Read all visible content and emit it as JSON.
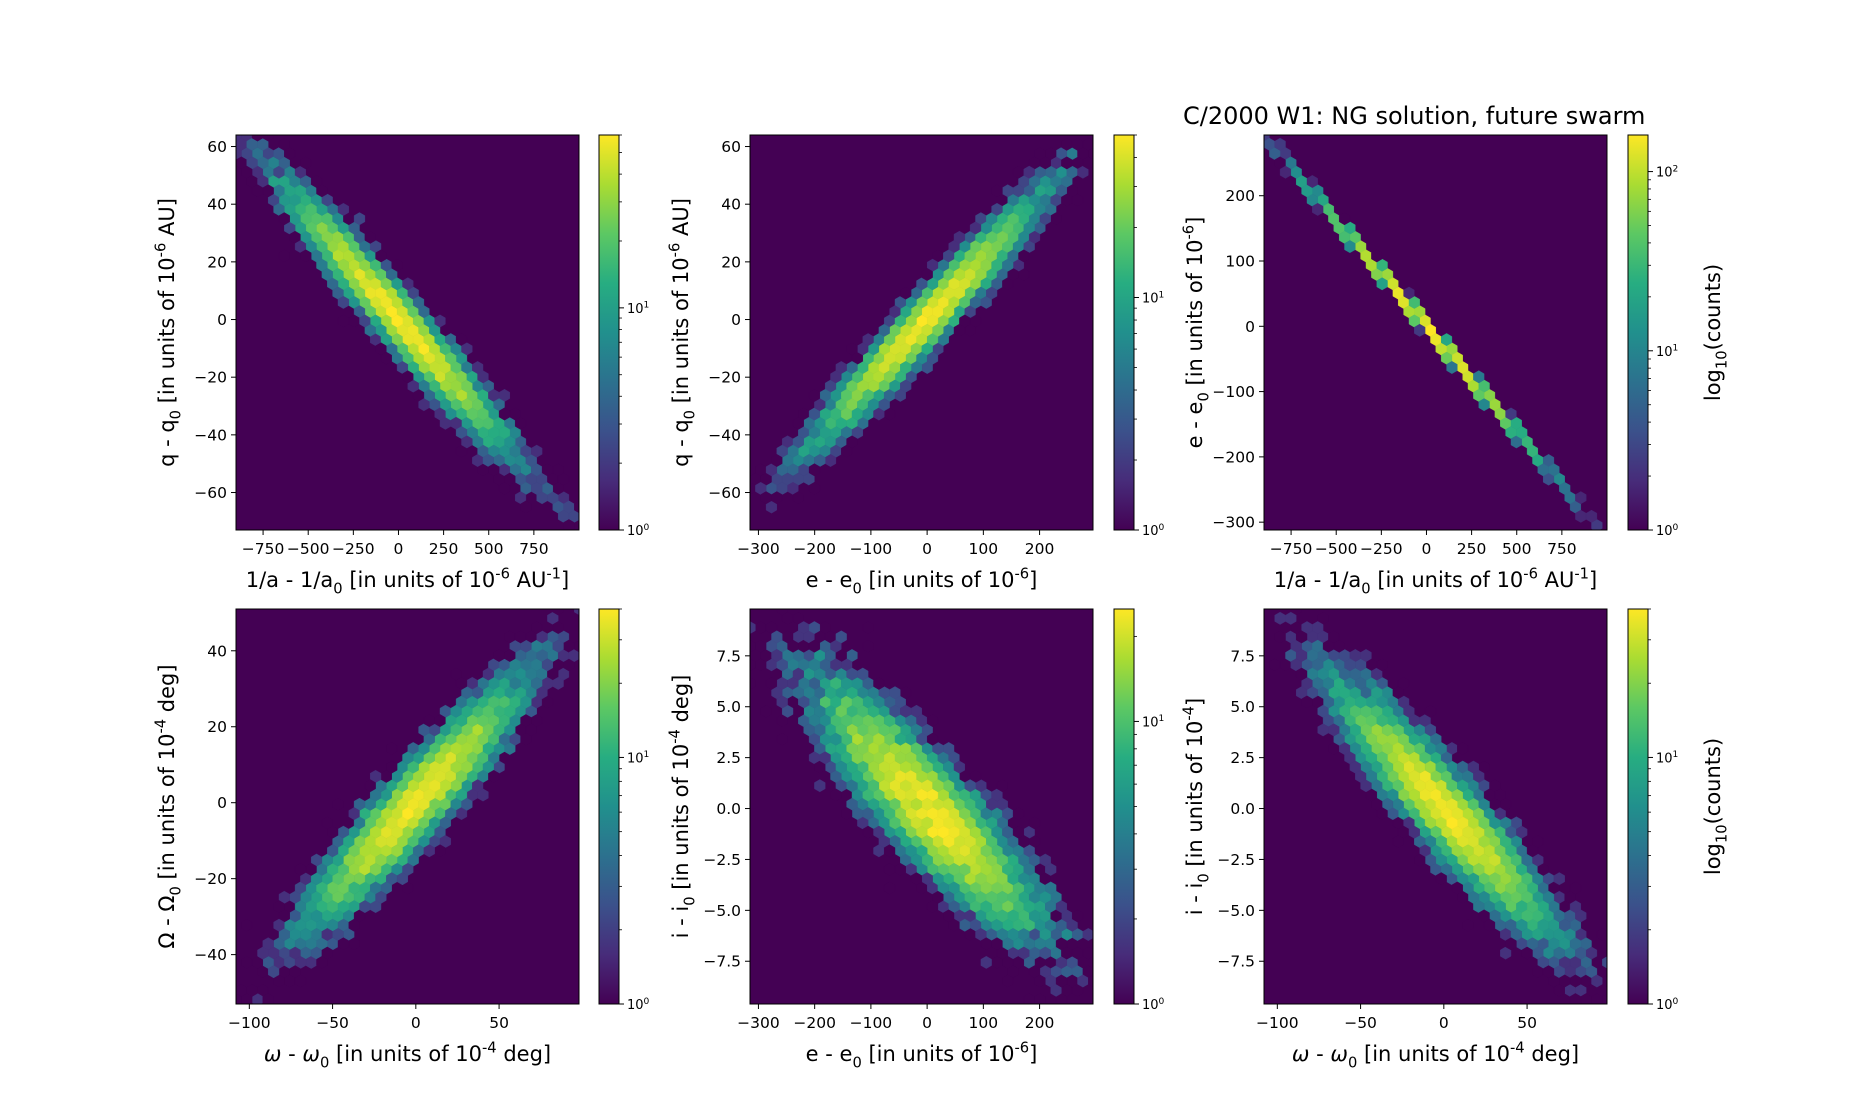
{
  "figure_title": "C/2000 W1:  NG solution, future swarm",
  "chart_data": [
    {
      "type": "heatmap",
      "subtype": "hexbin",
      "xlabel": "1/a - 1/a<sub>0</sub> [in units of 10<sup>-6</sup> AU<sup>-1</sup>]",
      "ylabel": "q - q<sub>0</sub> [in units of 10<sup>-6</sup> AU]",
      "xlim": [
        -900,
        1000
      ],
      "ylim": [
        -73,
        64
      ],
      "xticks": [
        -750,
        -500,
        -250,
        0,
        250,
        500,
        750
      ],
      "xtick_labels": [
        "−750",
        "−500",
        "−250",
        "0",
        "250",
        "500",
        "750"
      ],
      "yticks": [
        -60,
        -40,
        -20,
        0,
        20,
        40,
        60
      ],
      "ytick_labels": [
        "−60",
        "−40",
        "−20",
        "0",
        "20",
        "40",
        "60"
      ],
      "distribution": {
        "x_center": 0,
        "y_center": 0,
        "slope": -0.074,
        "x_extent": 900,
        "perp_width": 0.07
      },
      "colorbar": {
        "scale": "log",
        "min": 1,
        "max": 60,
        "ticks": [
          1,
          10
        ],
        "tick_labels": [
          "10<sup>0</sup>",
          "10<sup>1</sup>"
        ],
        "label": ""
      },
      "grid": false
    },
    {
      "type": "heatmap",
      "subtype": "hexbin",
      "xlabel": "e - e<sub>0</sub> [in units of 10<sup>-6</sup>]",
      "ylabel": "q - q<sub>0</sub> [in units of 10<sup>-6</sup> AU]",
      "xlim": [
        -315,
        295
      ],
      "ylim": [
        -73,
        64
      ],
      "xticks": [
        -300,
        -200,
        -100,
        0,
        100,
        200
      ],
      "xtick_labels": [
        "−300",
        "−200",
        "−100",
        "0",
        "100",
        "200"
      ],
      "yticks": [
        -60,
        -40,
        -20,
        0,
        20,
        40,
        60
      ],
      "ytick_labels": [
        "−60",
        "−40",
        "−20",
        "0",
        "20",
        "40",
        "60"
      ],
      "distribution": {
        "x_center": 0,
        "y_center": 0,
        "slope": 0.215,
        "x_extent": 290,
        "perp_width": 0.07
      },
      "colorbar": {
        "scale": "log",
        "min": 1,
        "max": 50,
        "ticks": [
          1,
          10
        ],
        "tick_labels": [
          "10<sup>0</sup>",
          "10<sup>1</sup>"
        ],
        "label": ""
      },
      "grid": false
    },
    {
      "type": "heatmap",
      "subtype": "hexbin",
      "xlabel": "1/a - 1/a<sub>0</sub> [in units of 10<sup>-6</sup> AU<sup>-1</sup>]",
      "ylabel": "e - e<sub>0</sub> [in units of 10<sup>-6</sup>]",
      "xlim": [
        -900,
        1000
      ],
      "ylim": [
        -312,
        293
      ],
      "xticks": [
        -750,
        -500,
        -250,
        0,
        250,
        500,
        750
      ],
      "xtick_labels": [
        "−750",
        "−500",
        "−250",
        "0",
        "250",
        "500",
        "750"
      ],
      "yticks": [
        -300,
        -200,
        -100,
        0,
        100,
        200
      ],
      "ytick_labels": [
        "−300",
        "−200",
        "−100",
        "0",
        "100",
        "200"
      ],
      "distribution": {
        "x_center": 0,
        "y_center": 0,
        "slope": -0.325,
        "x_extent": 880,
        "perp_width": 0.004
      },
      "colorbar": {
        "scale": "log",
        "min": 1,
        "max": 160,
        "ticks": [
          1,
          10,
          100
        ],
        "tick_labels": [
          "10<sup>0</sup>",
          "10<sup>1</sup>",
          "10<sup>2</sup>"
        ],
        "label": "log<sub>10</sub>(counts)"
      },
      "grid": false
    },
    {
      "type": "heatmap",
      "subtype": "hexbin",
      "xlabel": "<i>ω</i> - <i>ω</i><sub>0</sub> [in units of 10<sup>-4</sup> deg]",
      "ylabel": "Ω - Ω<sub>0</sub> [in units of 10<sup>-4</sup> deg]",
      "xlim": [
        -108,
        98
      ],
      "ylim": [
        -53,
        51
      ],
      "xticks": [
        -100,
        -50,
        0,
        50
      ],
      "xtick_labels": [
        "−100",
        "−50",
        "0",
        "50"
      ],
      "yticks": [
        -40,
        -20,
        0,
        20,
        40
      ],
      "ytick_labels": [
        "−40",
        "−20",
        "0",
        "20",
        "40"
      ],
      "distribution": {
        "x_center": 0,
        "y_center": 0,
        "slope": 0.5,
        "x_extent": 95,
        "perp_width": 0.1
      },
      "colorbar": {
        "scale": "log",
        "min": 1,
        "max": 40,
        "ticks": [
          1,
          10
        ],
        "tick_labels": [
          "10<sup>0</sup>",
          "10<sup>1</sup>"
        ],
        "label": ""
      },
      "grid": false
    },
    {
      "type": "heatmap",
      "subtype": "hexbin",
      "xlabel": "e - e<sub>0</sub> [in units of 10<sup>-6</sup>]",
      "ylabel": "i - i<sub>0</sub> [in units of 10<sup>-4</sup> deg]",
      "xlim": [
        -315,
        295
      ],
      "ylim": [
        -9.6,
        9.8
      ],
      "xticks": [
        -300,
        -200,
        -100,
        0,
        100,
        200
      ],
      "xtick_labels": [
        "−300",
        "−200",
        "−100",
        "0",
        "100",
        "200"
      ],
      "yticks": [
        -7.5,
        -5.0,
        -2.5,
        0.0,
        2.5,
        5.0,
        7.5
      ],
      "ytick_labels": [
        "−7.5",
        "−5.0",
        "−2.5",
        "0.0",
        "2.5",
        "5.0",
        "7.5"
      ],
      "distribution": {
        "x_center": 0,
        "y_center": 0,
        "slope": -0.031,
        "x_extent": 290,
        "perp_width": 0.14
      },
      "colorbar": {
        "scale": "log",
        "min": 1,
        "max": 25,
        "ticks": [
          1,
          10
        ],
        "tick_labels": [
          "10<sup>0</sup>",
          "10<sup>1</sup>"
        ],
        "label": ""
      },
      "grid": false
    },
    {
      "type": "heatmap",
      "subtype": "hexbin",
      "xlabel": "<i>ω</i> - <i>ω</i><sub>0</sub> [in units of 10<sup>-4</sup> deg]",
      "ylabel": "i - i<sub>0</sub> [in units of 10<sup>-4</sup>]",
      "xlim": [
        -108,
        98
      ],
      "ylim": [
        -9.6,
        9.8
      ],
      "xticks": [
        -100,
        -50,
        0,
        50
      ],
      "xtick_labels": [
        "−100",
        "−50",
        "0",
        "50"
      ],
      "yticks": [
        -7.5,
        -5.0,
        -2.5,
        0.0,
        2.5,
        5.0,
        7.5
      ],
      "ytick_labels": [
        "−7.5",
        "−5.0",
        "−2.5",
        "0.0",
        "2.5",
        "5.0",
        "7.5"
      ],
      "distribution": {
        "x_center": 0,
        "y_center": 0,
        "slope": -0.095,
        "x_extent": 95,
        "perp_width": 0.11
      },
      "colorbar": {
        "scale": "log",
        "min": 1,
        "max": 40,
        "ticks": [
          1,
          10
        ],
        "tick_labels": [
          "10<sup>0</sup>",
          "10<sup>1</sup>"
        ],
        "label": "log<sub>10</sub>(counts)"
      },
      "grid": false
    }
  ]
}
